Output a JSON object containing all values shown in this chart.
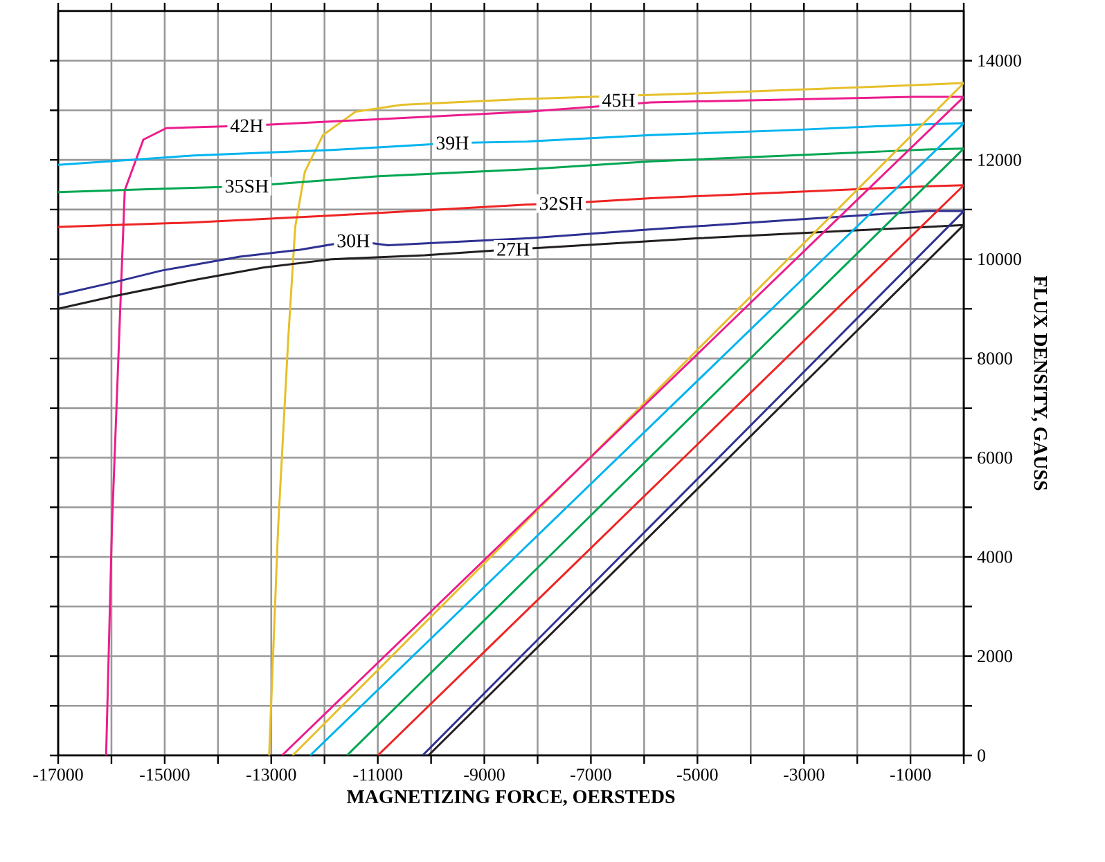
{
  "chart_data": {
    "type": "line",
    "xlabel": "MAGNETIZING FORCE, OERSTEDS",
    "ylabel": "FLUX DENSITY, GAUSS",
    "xlim": [
      -17000,
      0
    ],
    "ylim": [
      0,
      15000
    ],
    "xticks": [
      -17000,
      {
        "value": -16000,
        "label": null
      },
      -15000,
      {
        "value": -14000,
        "label": null
      },
      -13000,
      {
        "value": -12000,
        "label": null
      },
      -11000,
      {
        "value": -10000,
        "label": null
      },
      -9000,
      {
        "value": -8000,
        "label": null
      },
      -7000,
      {
        "value": -6000,
        "label": null
      },
      -5000,
      {
        "value": -4000,
        "label": null
      },
      -3000,
      {
        "value": -2000,
        "label": null
      },
      -1000,
      {
        "value": 0,
        "label": null
      }
    ],
    "yticks": [
      0,
      {
        "value": 1000,
        "label": null
      },
      2000,
      {
        "value": 3000,
        "label": null
      },
      4000,
      {
        "value": 5000,
        "label": null
      },
      6000,
      {
        "value": 7000,
        "label": null
      },
      8000,
      {
        "value": 9000,
        "label": null
      },
      10000,
      {
        "value": 11000,
        "label": null
      },
      12000,
      {
        "value": 13000,
        "label": null
      },
      14000
    ],
    "grid": true,
    "series": [
      {
        "color": "#e6c02a",
        "x": [
          -13040,
          -12870,
          -12680,
          -12550,
          -12370,
          -12030,
          -11420,
          -10550,
          -8210,
          -5020,
          -1540,
          0
        ],
        "values": [
          0,
          4620,
          8420,
          10650,
          11760,
          12500,
          12970,
          13110,
          13230,
          13340,
          13480,
          13550
        ]
      },
      {
        "color": "#ec1c8c",
        "x": [
          -16100,
          -15990,
          -15750,
          -15400,
          -14970,
          -13460,
          -8210,
          -5870,
          -935,
          0
        ],
        "values": [
          0,
          4620,
          11390,
          12410,
          12640,
          12690,
          12970,
          13160,
          13270,
          13270
        ]
      },
      {
        "color": "#00b4ef",
        "x": [
          -17000,
          -14450,
          -11850,
          -9600,
          -8210,
          -5870,
          -3270,
          -935,
          0
        ],
        "values": [
          11900,
          12090,
          12200,
          12340,
          12370,
          12500,
          12600,
          12710,
          12740
        ]
      },
      {
        "color": "#00a651",
        "x": [
          -17000,
          -15320,
          -13460,
          -10990,
          -8210,
          -5870,
          -3270,
          -675,
          0
        ],
        "values": [
          11350,
          11410,
          11470,
          11670,
          11810,
          11970,
          12090,
          12210,
          12230
        ]
      },
      {
        "color": "#ee2424",
        "x": [
          -17000,
          -14450,
          -11850,
          -8210,
          -7560,
          -5870,
          -3270,
          -675,
          0
        ],
        "values": [
          10650,
          10740,
          10880,
          11100,
          11120,
          11230,
          11350,
          11470,
          11490
        ]
      },
      {
        "color": "#2e3192",
        "x": [
          -17000,
          -15930,
          -15060,
          -13590,
          -12460,
          -11460,
          -10810,
          -8210,
          -5870,
          -3270,
          -675,
          0
        ],
        "values": [
          9280,
          9540,
          9770,
          10050,
          10190,
          10370,
          10280,
          10420,
          10600,
          10790,
          10970,
          10970
        ]
      },
      {
        "color": "#231f20",
        "x": [
          -17000,
          -15930,
          -14450,
          -13150,
          -11850,
          -10120,
          -8460,
          -7950,
          -5020,
          -2420,
          -675,
          0
        ],
        "values": [
          9000,
          9260,
          9580,
          9830,
          10000,
          10080,
          10200,
          10230,
          10420,
          10560,
          10650,
          10690
        ]
      },
      {
        "color": "#e6c02a",
        "x": [
          -12600,
          0
        ],
        "values": [
          0,
          13550
        ]
      },
      {
        "color": "#ec1c8c",
        "x": [
          -12800,
          0
        ],
        "values": [
          0,
          13270
        ]
      },
      {
        "color": "#00b4ef",
        "x": [
          -12270,
          0
        ],
        "values": [
          0,
          12740
        ]
      },
      {
        "color": "#00a651",
        "x": [
          -11580,
          0
        ],
        "values": [
          0,
          12230
        ]
      },
      {
        "color": "#ee2424",
        "x": [
          -11000,
          0
        ],
        "values": [
          0,
          11490
        ]
      },
      {
        "color": "#2e3192",
        "x": [
          -10160,
          0
        ],
        "values": [
          0,
          10970
        ]
      },
      {
        "color": "#231f20",
        "x": [
          -10050,
          0
        ],
        "values": [
          0,
          10690
        ]
      }
    ],
    "annotations": [
      {
        "text": "45H",
        "x": -6480,
        "y": 13200
      },
      {
        "text": "42H",
        "x": -13460,
        "y": 12690
      },
      {
        "text": "39H",
        "x": -9600,
        "y": 12340
      },
      {
        "text": "35SH",
        "x": -13460,
        "y": 11470
      },
      {
        "text": "32SH",
        "x": -7560,
        "y": 11120
      },
      {
        "text": "30H",
        "x": -11460,
        "y": 10370
      },
      {
        "text": "27H",
        "x": -8460,
        "y": 10200
      }
    ]
  }
}
